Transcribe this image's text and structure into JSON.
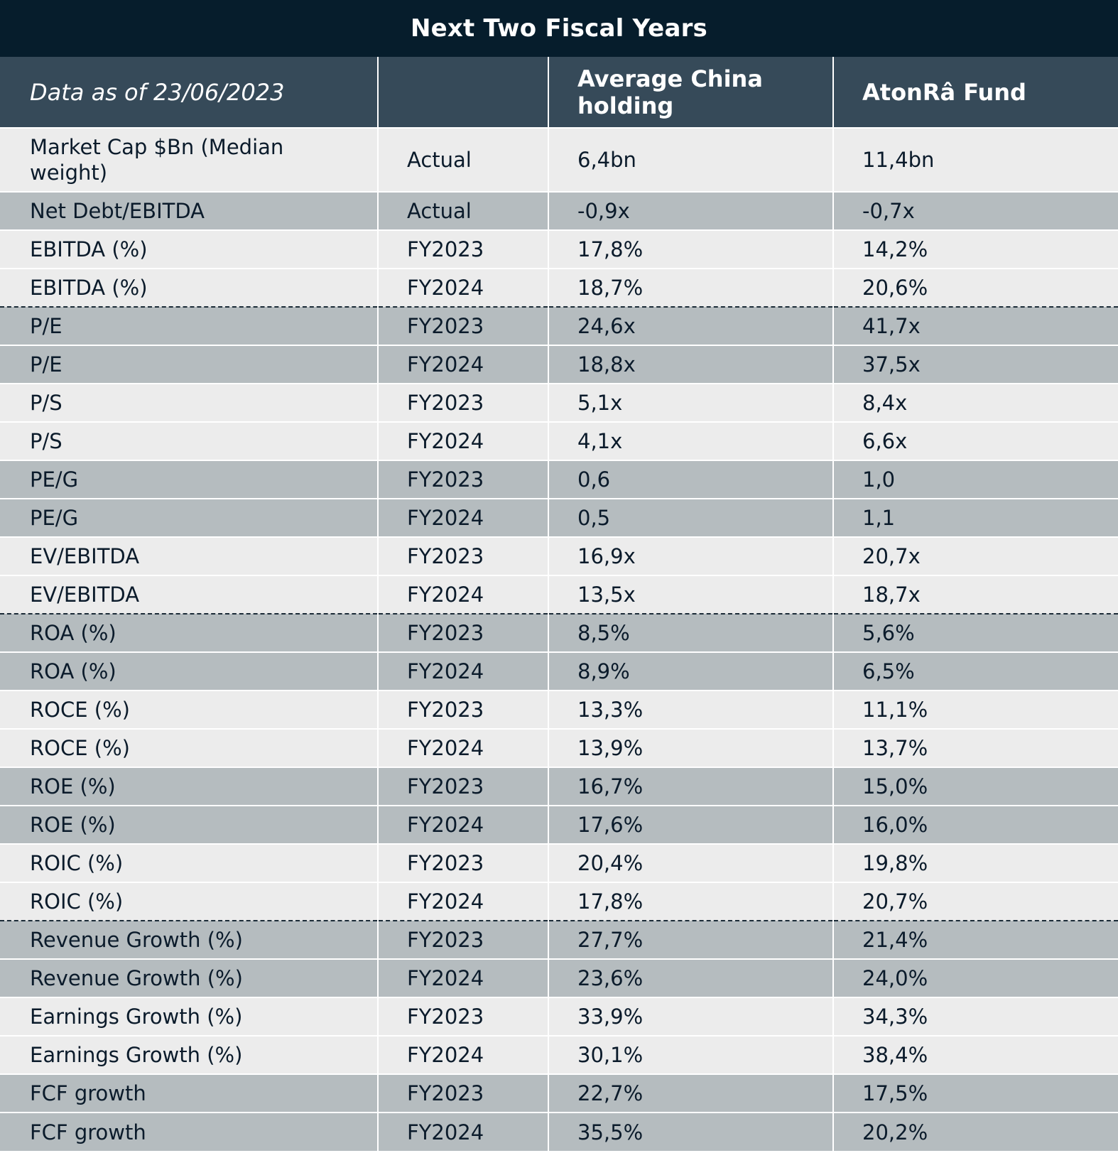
{
  "title": "Next Two Fiscal Years",
  "header": {
    "date_label": "Data as of 23/06/2023",
    "period_label": "",
    "col_china": "Average China holding",
    "col_fund": "AtonRâ Fund"
  },
  "rows": [
    {
      "metric": "Market Cap $Bn (Median weight)",
      "period": "Actual",
      "china": "6,4bn",
      "fund": "11,4bn"
    },
    {
      "metric": "Net Debt/EBITDA",
      "period": "Actual",
      "china": "-0,9x",
      "fund": "-0,7x"
    },
    {
      "metric": "EBITDA (%)",
      "period": "FY2023",
      "china": "17,8%",
      "fund": "14,2%"
    },
    {
      "metric": "EBITDA (%)",
      "period": "FY2024",
      "china": "18,7%",
      "fund": "20,6%"
    },
    {
      "metric": "P/E",
      "period": "FY2023",
      "china": "24,6x",
      "fund": "41,7x"
    },
    {
      "metric": "P/E",
      "period": "FY2024",
      "china": "18,8x",
      "fund": "37,5x"
    },
    {
      "metric": "P/S",
      "period": "FY2023",
      "china": "5,1x",
      "fund": "8,4x"
    },
    {
      "metric": "P/S",
      "period": "FY2024",
      "china": "4,1x",
      "fund": "6,6x"
    },
    {
      "metric": "PE/G",
      "period": "FY2023",
      "china": "0,6",
      "fund": "1,0"
    },
    {
      "metric": "PE/G",
      "period": "FY2024",
      "china": "0,5",
      "fund": "1,1"
    },
    {
      "metric": "EV/EBITDA",
      "period": "FY2023",
      "china": "16,9x",
      "fund": "20,7x"
    },
    {
      "metric": "EV/EBITDA",
      "period": "FY2024",
      "china": "13,5x",
      "fund": "18,7x"
    },
    {
      "metric": "ROA (%)",
      "period": "FY2023",
      "china": "8,5%",
      "fund": "5,6%"
    },
    {
      "metric": "ROA (%)",
      "period": "FY2024",
      "china": "8,9%",
      "fund": "6,5%"
    },
    {
      "metric": "ROCE (%)",
      "period": "FY2023",
      "china": "13,3%",
      "fund": "11,1%"
    },
    {
      "metric": "ROCE (%)",
      "period": "FY2024",
      "china": "13,9%",
      "fund": "13,7%"
    },
    {
      "metric": "ROE (%)",
      "period": "FY2023",
      "china": "16,7%",
      "fund": "15,0%"
    },
    {
      "metric": "ROE (%)",
      "period": "FY2024",
      "china": "17,6%",
      "fund": "16,0%"
    },
    {
      "metric": "ROIC (%)",
      "period": "FY2023",
      "china": "20,4%",
      "fund": "19,8%"
    },
    {
      "metric": "ROIC (%)",
      "period": "FY2024",
      "china": "17,8%",
      "fund": "20,7%"
    },
    {
      "metric": "Revenue Growth (%)",
      "period": "FY2023",
      "china": "27,7%",
      "fund": "21,4%"
    },
    {
      "metric": "Revenue Growth (%)",
      "period": "FY2024",
      "china": "23,6%",
      "fund": "24,0%"
    },
    {
      "metric": "Earnings Growth (%)",
      "period": "FY2023",
      "china": "33,9%",
      "fund": "34,3%"
    },
    {
      "metric": "Earnings Growth (%)",
      "period": "FY2024",
      "china": "30,1%",
      "fund": "38,4%"
    },
    {
      "metric": "FCF growth",
      "period": "FY2023",
      "china": "22,7%",
      "fund": "17,5%"
    },
    {
      "metric": "FCF growth",
      "period": "FY2024",
      "china": "35,5%",
      "fund": "20,2%"
    }
  ]
}
